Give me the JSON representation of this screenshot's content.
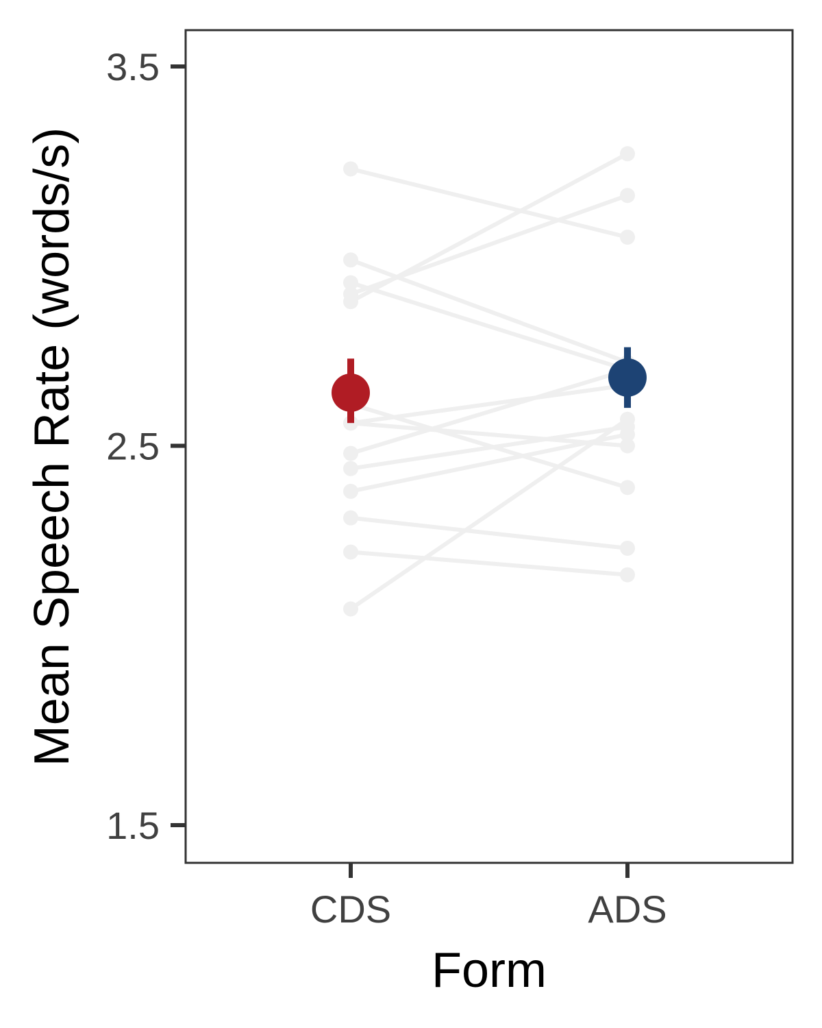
{
  "chart_data": {
    "type": "scatter",
    "xlabel": "Form",
    "ylabel": "Mean Speech Rate (words/s)",
    "categories": [
      "CDS",
      "ADS"
    ],
    "ylim": [
      1.4,
      3.6
    ],
    "yticks": [
      1.5,
      2.5,
      3.5
    ],
    "ytick_labels": [
      "1.5",
      "2.5",
      "3.5"
    ],
    "grid": false,
    "legend": "none",
    "participants": [
      {
        "cds": 3.23,
        "ads": 3.05
      },
      {
        "cds": 2.99,
        "ads": 2.72
      },
      {
        "cds": 2.93,
        "ads": 2.7
      },
      {
        "cds": 2.9,
        "ads": 3.16
      },
      {
        "cds": 2.88,
        "ads": 3.27
      },
      {
        "cds": 2.61,
        "ads": 2.39
      },
      {
        "cds": 2.56,
        "ads": 2.66
      },
      {
        "cds": 2.56,
        "ads": 2.5
      },
      {
        "cds": 2.48,
        "ads": 2.7
      },
      {
        "cds": 2.44,
        "ads": 2.55
      },
      {
        "cds": 2.38,
        "ads": 2.53
      },
      {
        "cds": 2.31,
        "ads": 2.23
      },
      {
        "cds": 2.22,
        "ads": 2.16
      },
      {
        "cds": 2.07,
        "ads": 2.57
      }
    ],
    "means": [
      {
        "form": "CDS",
        "mean": 2.64,
        "lower": 2.56,
        "upper": 2.73,
        "color": "#b01c24"
      },
      {
        "form": "ADS",
        "mean": 2.68,
        "lower": 2.6,
        "upper": 2.76,
        "color": "#1d4374"
      }
    ],
    "participant_color": "#efefef"
  }
}
